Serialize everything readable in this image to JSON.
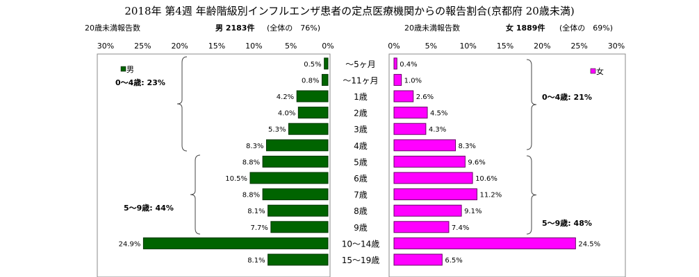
{
  "colors": {
    "male": "#006400",
    "female": "#ff00ff",
    "male_border": "#003300",
    "female_border": "#660066"
  },
  "header": {
    "title": "2018年 第4週 年齢階級別インフルエンザ患者の定点医療機関からの報告割合(京都府 20歳未満)",
    "left_caption": "20歳未満報告数",
    "left_total": "男 2183件",
    "left_share": "(全体の　76%)",
    "right_caption": "20歳未満報告数",
    "right_total": "女 1889件",
    "right_share": "(全体の　69%)"
  },
  "chart_data": {
    "type": "bar",
    "orientation": "horizontal-population-pyramid",
    "categories": [
      "〜5ヶ月",
      "〜11ヶ月",
      "1歳",
      "2歳",
      "3歳",
      "4歳",
      "5歳",
      "6歳",
      "7歳",
      "8歳",
      "9歳",
      "10〜14歳",
      "15〜19歳"
    ],
    "series": [
      {
        "name": "男",
        "values": [
          0.5,
          0.8,
          4.2,
          4.0,
          5.3,
          8.3,
          8.8,
          10.5,
          8.8,
          8.1,
          7.7,
          24.9,
          8.1
        ],
        "labels": [
          "0.5%",
          "0.8%",
          "4.2%",
          "4.0%",
          "5.3%",
          "8.3%",
          "8.8%",
          "10.5%",
          "8.8%",
          "8.1%",
          "7.7%",
          "24.9%",
          "8.1%"
        ]
      },
      {
        "name": "女",
        "values": [
          0.4,
          1.0,
          2.6,
          4.5,
          4.3,
          8.3,
          9.6,
          10.6,
          11.2,
          9.1,
          7.4,
          24.5,
          6.5
        ],
        "labels": [
          "0.4%",
          "1.0%",
          "2.6%",
          "4.5%",
          "4.3%",
          "8.3%",
          "9.6%",
          "10.6%",
          "11.2%",
          "9.1%",
          "7.4%",
          "24.5%",
          "6.5%"
        ]
      }
    ],
    "xlim": [
      0,
      30
    ],
    "ticks_left": [
      "30%",
      "25%",
      "20%",
      "15%",
      "10%",
      "5%",
      "0%"
    ],
    "ticks_right": [
      "0%",
      "5%",
      "10%",
      "15%",
      "20%",
      "25%",
      "30%"
    ],
    "legend_left": "男",
    "legend_right": "女",
    "groups_left": [
      "0〜4歳: 23%",
      "5〜9歳: 44%"
    ],
    "groups_right": [
      "0〜4歳: 21%",
      "5〜9歳: 48%"
    ]
  }
}
